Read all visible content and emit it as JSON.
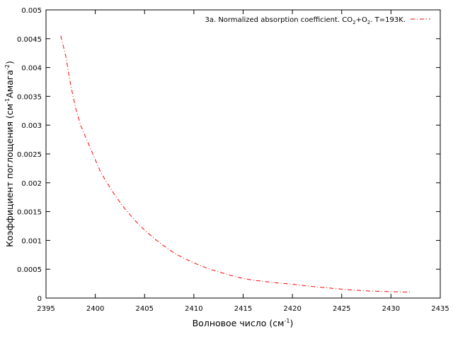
{
  "chart_data": {
    "type": "line",
    "legend": {
      "label_prefix": "3a. Normalized absorption coefficient. CO",
      "label_sub1": "2",
      "label_mid": "+O",
      "label_sub2": "2",
      "label_suffix": ". T=193K.",
      "placement": "top-right"
    },
    "xlabel": {
      "main": "Волновое число (см",
      "sup": "-1",
      "end": ")"
    },
    "ylabel": {
      "main": "Коэффициент поглощения (см",
      "sup1": "-1",
      "mid": "Амага",
      "sup2": "-2",
      "end": ")"
    },
    "xlim": [
      2395,
      2435
    ],
    "ylim": [
      0,
      0.005
    ],
    "xticks": [
      "2395",
      "2400",
      "2405",
      "2410",
      "2415",
      "2420",
      "2425",
      "2430",
      "2435"
    ],
    "yticks": [
      "0",
      "0.0005",
      "0.001",
      "0.0015",
      "0.002",
      "0.0025",
      "0.003",
      "0.0035",
      "0.004",
      "0.0045",
      "0.005"
    ],
    "grid": false,
    "colors": {
      "series": "#ff0000",
      "axis": "#000000"
    },
    "series": [
      {
        "x": [
          2396.5,
          2397.0,
          2397.5,
          2398.0,
          2398.5,
          2399.0,
          2399.5,
          2400.0,
          2400.5,
          2401.0,
          2402.0,
          2403.0,
          2404.0,
          2405.0,
          2406.0,
          2407.0,
          2408.0,
          2409.0,
          2410.0,
          2411.0,
          2412.0,
          2413.0,
          2414.0,
          2415.0,
          2416.0,
          2418.0,
          2420.0,
          2422.0,
          2424.0,
          2426.0,
          2428.0,
          2430.0,
          2432.0
        ],
        "y": [
          0.00455,
          0.0042,
          0.0037,
          0.0033,
          0.003,
          0.0028,
          0.0026,
          0.0024,
          0.0022,
          0.00205,
          0.00178,
          0.00155,
          0.00135,
          0.00118,
          0.00103,
          0.0009,
          0.00078,
          0.00069,
          0.00061,
          0.00054,
          0.00048,
          0.00043,
          0.00038,
          0.00034,
          0.00031,
          0.00027,
          0.00024,
          0.0002,
          0.00017,
          0.00014,
          0.00012,
          0.00011,
          0.0001
        ]
      }
    ]
  }
}
